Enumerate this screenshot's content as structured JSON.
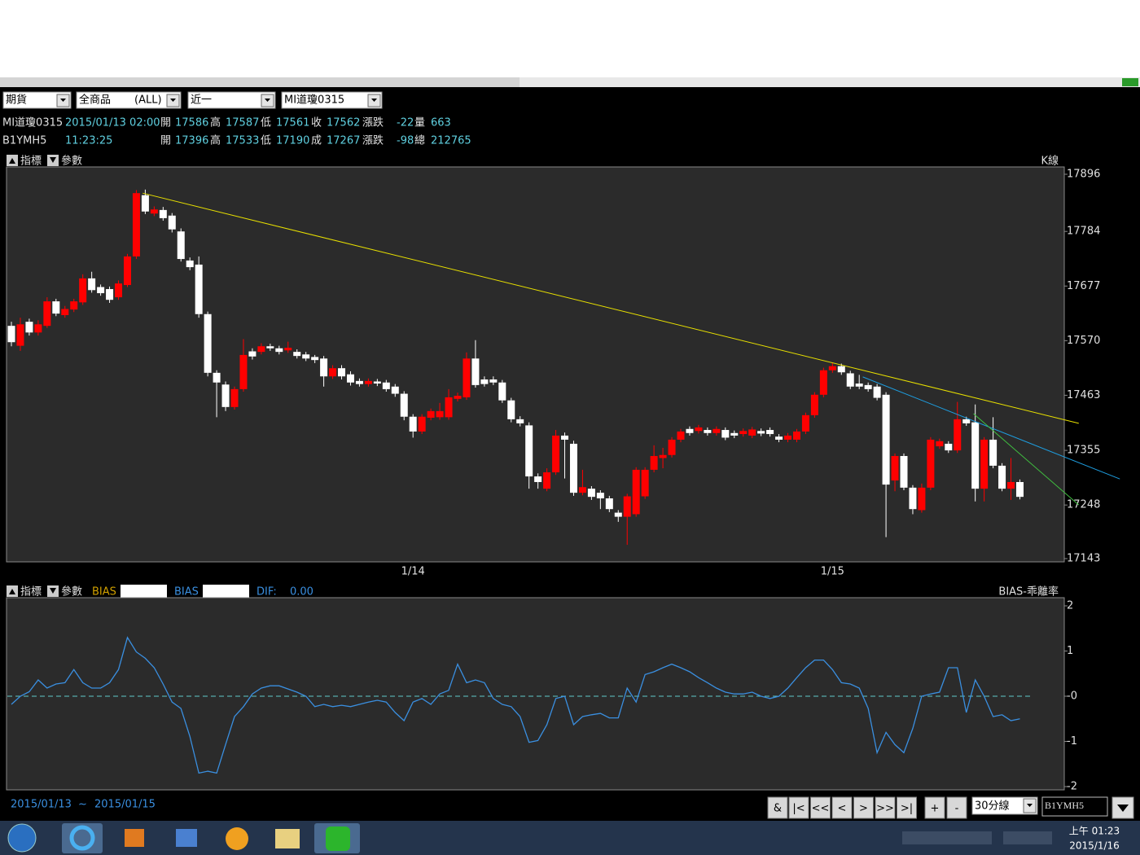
{
  "toolbar": {
    "market": "期貨",
    "product": "全商品",
    "product_scope": "(ALL)",
    "range": "近一",
    "symbol": "MI道瓊0315"
  },
  "quotes": [
    {
      "symbol": "MI道瓊0315",
      "time": "2015/01/13 02:00",
      "fields": [
        [
          "開",
          "17586"
        ],
        [
          "高",
          "17587"
        ],
        [
          "低",
          "17561"
        ],
        [
          "收",
          "17562"
        ],
        [
          "漲跌",
          "-22"
        ],
        [
          "量",
          "663"
        ]
      ]
    },
    {
      "symbol": "B1YMH5",
      "time": "11:23:25",
      "fields": [
        [
          "開",
          "17396"
        ],
        [
          "高",
          "17533"
        ],
        [
          "低",
          "17190"
        ],
        [
          "成",
          "17267"
        ],
        [
          "漲跌",
          "-98"
        ],
        [
          "總",
          "212765"
        ]
      ]
    }
  ],
  "panel_header": {
    "indicator": "指標",
    "params": "參數",
    "price_title": "K線",
    "bias_label": "BIAS",
    "dif_label": "DIF:",
    "dif_value": "0.00",
    "bias_title": "BIAS-乖離率"
  },
  "footer": {
    "from": "2015/01/13",
    "sep": "~",
    "to": "2015/01/15",
    "buttons": [
      "&",
      "|<",
      "<<",
      "<",
      ">",
      ">>",
      ">|",
      "+",
      "-"
    ],
    "period": "30分線",
    "code": "B1YMH5"
  },
  "taskbar": {
    "time": "上午 01:23",
    "date": "2015/1/16"
  },
  "chart_data": [
    {
      "type": "candlestick",
      "up_color": "#ff0000",
      "down_color": "#ffffff",
      "categories": [
        null,
        null,
        null,
        null,
        null,
        null,
        null,
        null,
        null,
        null,
        null,
        null,
        null,
        null,
        null,
        null,
        null,
        null,
        null,
        null,
        null,
        null,
        null,
        null,
        null,
        null,
        null,
        null,
        null,
        null,
        null,
        null,
        null,
        null,
        null,
        null,
        null,
        null,
        null,
        null,
        null,
        null,
        null,
        null,
        null,
        "1/14",
        null,
        null,
        null,
        null,
        null,
        null,
        null,
        null,
        null,
        null,
        null,
        null,
        null,
        null,
        null,
        null,
        null,
        null,
        null,
        null,
        null,
        null,
        null,
        null,
        null,
        null,
        null,
        null,
        null,
        null,
        null,
        null,
        null,
        null,
        null,
        null,
        null,
        null,
        null,
        null,
        null,
        null,
        null,
        null,
        null,
        null,
        "1/15",
        null,
        null,
        null,
        null,
        null,
        null,
        null,
        null,
        null,
        null,
        null,
        null,
        null,
        null,
        null,
        null,
        null,
        null,
        null,
        null,
        null
      ],
      "open": [
        17599,
        17560,
        17607,
        17586,
        17599,
        17647,
        17620,
        17631,
        17645,
        17692,
        17675,
        17671,
        17655,
        17679,
        17735,
        17855,
        17819,
        17826,
        17815,
        17784,
        17727,
        17719,
        17622,
        17507,
        17484,
        17440,
        17475,
        17549,
        17548,
        17559,
        17555,
        17551,
        17548,
        17543,
        17538,
        17535,
        17500,
        17516,
        17504,
        17491,
        17485,
        17490,
        17488,
        17480,
        17466,
        17421,
        17392,
        17419,
        17420,
        17420,
        17456,
        17459,
        17535,
        17494,
        17494,
        17488,
        17453,
        17416,
        17404,
        17304,
        17280,
        17312,
        17384,
        17368,
        17272,
        17280,
        17272,
        17261,
        17233,
        17225,
        17230,
        17265,
        17317,
        17340,
        17346,
        17376,
        17397,
        17393,
        17395,
        17389,
        17395,
        17389,
        17387,
        17384,
        17393,
        17395,
        17382,
        17376,
        17376,
        17392,
        17424,
        17464,
        17512,
        17520,
        17506,
        17486,
        17483,
        17480,
        17464,
        17296,
        17344,
        17282,
        17238,
        17282,
        17363,
        17368,
        17355,
        17416,
        17410,
        17280,
        17376,
        17325,
        17280,
        17293
      ],
      "high": [
        17607,
        17615,
        17613,
        17610,
        17655,
        17652,
        17638,
        17652,
        17700,
        17705,
        17680,
        17676,
        17688,
        17740,
        17865,
        17866,
        17833,
        17832,
        17820,
        17790,
        17733,
        17735,
        17627,
        17512,
        17490,
        17480,
        17573,
        17555,
        17565,
        17564,
        17560,
        17568,
        17553,
        17548,
        17542,
        17540,
        17522,
        17522,
        17510,
        17496,
        17496,
        17495,
        17493,
        17485,
        17471,
        17426,
        17426,
        17437,
        17448,
        17475,
        17468,
        17547,
        17571,
        17500,
        17500,
        17493,
        17458,
        17422,
        17410,
        17310,
        17320,
        17395,
        17390,
        17374,
        17317,
        17285,
        17277,
        17266,
        17238,
        17270,
        17322,
        17322,
        17365,
        17360,
        17381,
        17397,
        17402,
        17405,
        17400,
        17402,
        17400,
        17394,
        17398,
        17401,
        17398,
        17400,
        17387,
        17389,
        17397,
        17429,
        17469,
        17517,
        17527,
        17525,
        17511,
        17503,
        17488,
        17485,
        17469,
        17349,
        17349,
        17287,
        17290,
        17381,
        17378,
        17373,
        17450,
        17421,
        17445,
        17381,
        17420,
        17330,
        17340,
        17298
      ],
      "low": [
        17559,
        17550,
        17580,
        17580,
        17595,
        17618,
        17615,
        17626,
        17640,
        17664,
        17658,
        17644,
        17650,
        17675,
        17730,
        17818,
        17814,
        17805,
        17782,
        17725,
        17708,
        17615,
        17500,
        17420,
        17432,
        17435,
        17470,
        17533,
        17543,
        17550,
        17543,
        17546,
        17535,
        17530,
        17526,
        17480,
        17495,
        17494,
        17482,
        17480,
        17480,
        17481,
        17470,
        17460,
        17414,
        17380,
        17387,
        17414,
        17415,
        17415,
        17451,
        17454,
        17478,
        17480,
        17483,
        17448,
        17410,
        17402,
        17280,
        17280,
        17275,
        17307,
        17300,
        17266,
        17267,
        17258,
        17240,
        17234,
        17215,
        17170,
        17225,
        17260,
        17312,
        17320,
        17341,
        17371,
        17384,
        17388,
        17384,
        17384,
        17375,
        17379,
        17382,
        17379,
        17383,
        17382,
        17371,
        17371,
        17371,
        17387,
        17419,
        17459,
        17507,
        17503,
        17475,
        17475,
        17470,
        17453,
        17185,
        17275,
        17277,
        17230,
        17233,
        17277,
        17358,
        17350,
        17350,
        17403,
        17255,
        17255,
        17320,
        17275,
        17258,
        17259
      ],
      "close": [
        17567,
        17602,
        17586,
        17602,
        17647,
        17623,
        17632,
        17647,
        17692,
        17669,
        17663,
        17650,
        17682,
        17735,
        17859,
        17823,
        17827,
        17810,
        17788,
        17730,
        17714,
        17622,
        17507,
        17488,
        17440,
        17475,
        17542,
        17539,
        17559,
        17555,
        17548,
        17556,
        17540,
        17535,
        17532,
        17500,
        17516,
        17500,
        17488,
        17485,
        17491,
        17486,
        17475,
        17466,
        17421,
        17392,
        17421,
        17432,
        17432,
        17459,
        17462,
        17535,
        17483,
        17485,
        17488,
        17453,
        17416,
        17408,
        17304,
        17293,
        17312,
        17384,
        17376,
        17272,
        17283,
        17264,
        17261,
        17240,
        17225,
        17265,
        17317,
        17317,
        17344,
        17346,
        17376,
        17392,
        17389,
        17400,
        17389,
        17397,
        17380,
        17384,
        17393,
        17396,
        17388,
        17387,
        17376,
        17384,
        17392,
        17424,
        17464,
        17512,
        17520,
        17508,
        17480,
        17480,
        17475,
        17458,
        17288,
        17344,
        17282,
        17240,
        17282,
        17376,
        17373,
        17355,
        17416,
        17408,
        17280,
        17376,
        17325,
        17280,
        17293,
        17264
      ],
      "ylim": [
        17143,
        17896
      ],
      "yticks": [
        17896,
        17784,
        17677,
        17570,
        17463,
        17355,
        17248,
        17143
      ],
      "trendlines": [
        {
          "color": "#e8e000",
          "x1": 14.7,
          "y1": 17859,
          "x2": 119.6,
          "y2": 17408
        },
        {
          "color": "#1e9ee0",
          "x1": 95.4,
          "y1": 17499,
          "x2": 124.2,
          "y2": 17299
        },
        {
          "color": "#40c040",
          "x1": 107.8,
          "y1": 17427,
          "x2": 119.6,
          "y2": 17248
        }
      ]
    },
    {
      "type": "line",
      "series": [
        {
          "name": "BIAS",
          "color": "#3a8fe0",
          "values": [
            -0.18,
            0,
            0.1,
            0.36,
            0.18,
            0.27,
            0.3,
            0.59,
            0.3,
            0.18,
            0.18,
            0.3,
            0.59,
            1.3,
            0.98,
            0.84,
            0.63,
            0.27,
            -0.13,
            -0.27,
            -0.89,
            -1.7,
            -1.66,
            -1.7,
            -1.07,
            -0.45,
            -0.23,
            0.05,
            0.18,
            0.23,
            0.23,
            0.16,
            0.09,
            0,
            -0.23,
            -0.18,
            -0.23,
            -0.2,
            -0.23,
            -0.18,
            -0.13,
            -0.09,
            -0.13,
            -0.36,
            -0.54,
            -0.13,
            -0.05,
            -0.18,
            0.05,
            0.13,
            0.71,
            0.3,
            0.36,
            0.3,
            -0.05,
            -0.18,
            -0.23,
            -0.45,
            -1.02,
            -0.98,
            -0.63,
            -0.05,
            0,
            -0.63,
            -0.45,
            -0.41,
            -0.38,
            -0.48,
            -0.48,
            0.18,
            -0.13,
            0.48,
            0.54,
            0.63,
            0.71,
            0.63,
            0.54,
            0.41,
            0.3,
            0.18,
            0.09,
            0.05,
            0.05,
            0.09,
            0,
            -0.05,
            0,
            0.18,
            0.41,
            0.63,
            0.8,
            0.8,
            0.59,
            0.3,
            0.27,
            0.18,
            -0.27,
            -1.25,
            -0.8,
            -1.07,
            -1.25,
            -0.71,
            0,
            0.05,
            0.09,
            0.63,
            0.63,
            -0.36,
            0.36,
            0,
            -0.45,
            -0.41,
            -0.54,
            -0.5
          ]
        }
      ],
      "reference_line": {
        "value": 0,
        "color": "#5fc8c8"
      },
      "ylim": [
        -2,
        2
      ],
      "yticks": [
        2,
        1,
        {
          "value": 0,
          "label": "-0"
        },
        -1,
        -2
      ]
    }
  ]
}
